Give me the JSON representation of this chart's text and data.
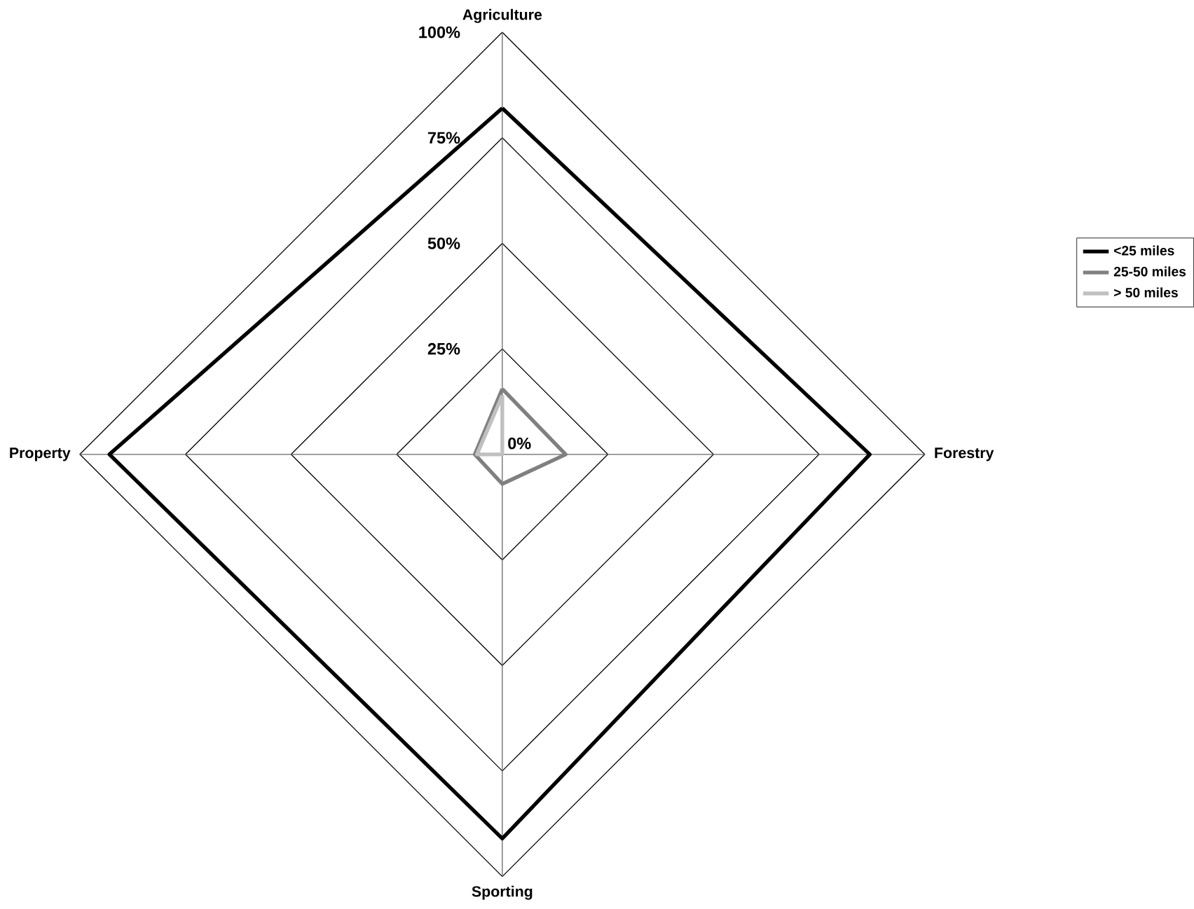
{
  "chart_data": {
    "type": "radar",
    "categories": [
      "Agriculture",
      "Forestry",
      "Sporting",
      "Property"
    ],
    "series": [
      {
        "name": "<25 miles",
        "color": "#000000",
        "values": [
          82,
          87,
          91,
          93
        ]
      },
      {
        "name": "25-50 miles",
        "color": "#808080",
        "values": [
          15.5,
          15,
          7,
          6.5
        ]
      },
      {
        "name": "> 50 miles",
        "color": "#c0c0c0",
        "values": [
          14,
          0,
          0,
          6
        ]
      }
    ],
    "ylim": [
      0,
      100
    ],
    "yticks": [
      {
        "value": 0,
        "label": "0%"
      },
      {
        "value": 25,
        "label": "25%"
      },
      {
        "value": 50,
        "label": "50%"
      },
      {
        "value": 75,
        "label": "75%"
      },
      {
        "value": 100,
        "label": "100%"
      }
    ],
    "grid": true,
    "legend": "right",
    "marker": "none",
    "line_style": "solid"
  }
}
